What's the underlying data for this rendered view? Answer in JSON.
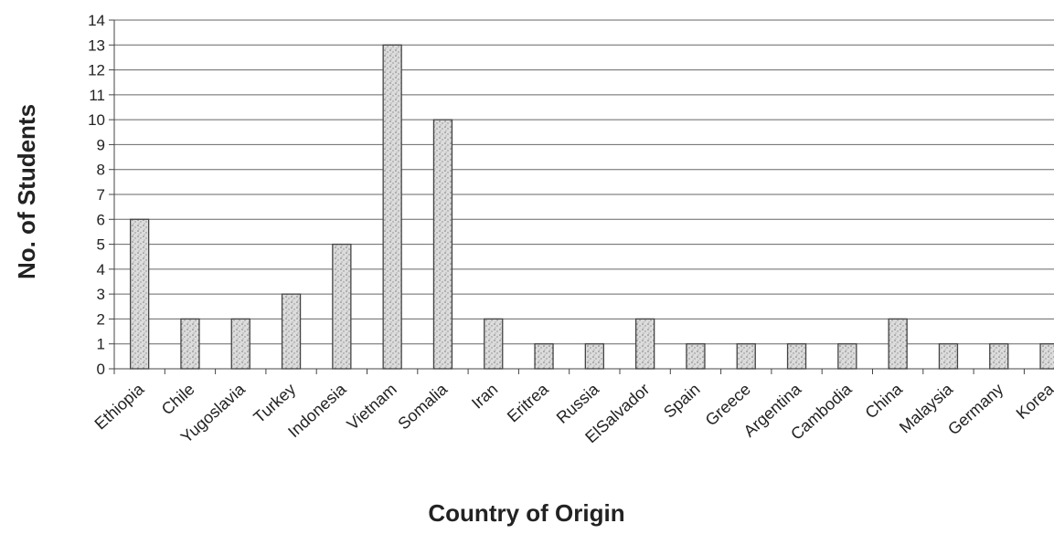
{
  "chart_data": {
    "type": "bar",
    "title": "",
    "xlabel": "Country of Origin",
    "ylabel": "No. of Students",
    "ylim": [
      0,
      14
    ],
    "yticks": [
      0,
      1,
      2,
      3,
      4,
      5,
      6,
      7,
      8,
      9,
      10,
      11,
      12,
      13,
      14
    ],
    "grid": true,
    "legend": "none",
    "bar_color": "#d8d8d8",
    "bar_edge": "#444444",
    "categories": [
      "Ethiopia",
      "Chile",
      "Yugoslavia",
      "Turkey",
      "Indonesia",
      "Vietnam",
      "Somalia",
      "Iran",
      "Eritrea",
      "Russia",
      "ElSalvador",
      "Spain",
      "Greece",
      "Argentina",
      "Cambodia",
      "China",
      "Malaysia",
      "Germany",
      "Korea"
    ],
    "values": [
      6,
      2,
      2,
      3,
      5,
      13,
      10,
      2,
      1,
      1,
      2,
      1,
      1,
      1,
      1,
      2,
      1,
      1,
      1
    ]
  }
}
